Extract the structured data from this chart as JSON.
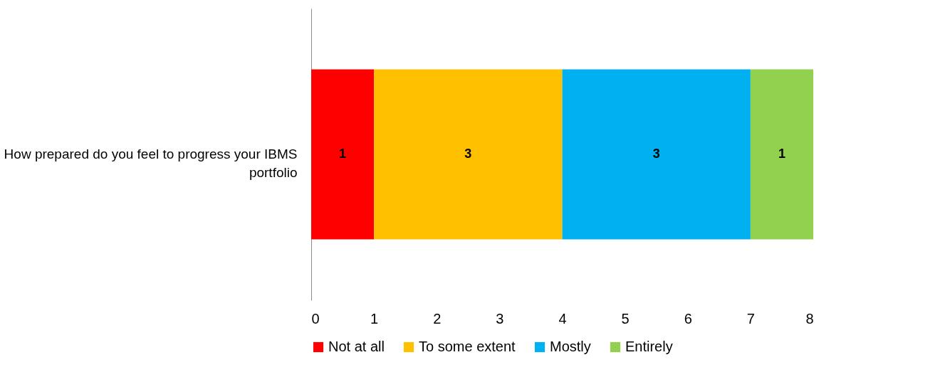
{
  "chart_data": {
    "type": "bar",
    "orientation": "horizontal",
    "stacked": true,
    "data_labels": true,
    "legend": "bottom",
    "grid": false,
    "categories": [
      "How prepared do you feel to progress your IBMS portfolio"
    ],
    "xlim": [
      0,
      8
    ],
    "xticks": [
      {
        "value": 0,
        "label": "0"
      },
      {
        "value": 1,
        "label": "1"
      },
      {
        "value": 2,
        "label": "2"
      },
      {
        "value": 3,
        "label": "3"
      },
      {
        "value": 4,
        "label": "4"
      },
      {
        "value": 5,
        "label": "5"
      },
      {
        "value": 6,
        "label": "6"
      },
      {
        "value": 7,
        "label": "7"
      },
      {
        "value": 8,
        "label": "8"
      }
    ],
    "series": [
      {
        "name": "Not at all",
        "color": "#ff0000",
        "values": [
          1
        ]
      },
      {
        "name": "To some extent",
        "color": "#ffc000",
        "values": [
          3
        ]
      },
      {
        "name": "Mostly",
        "color": "#00b0f0",
        "values": [
          3
        ]
      },
      {
        "name": "Entirely",
        "color": "#92d050",
        "values": [
          1
        ]
      }
    ]
  }
}
